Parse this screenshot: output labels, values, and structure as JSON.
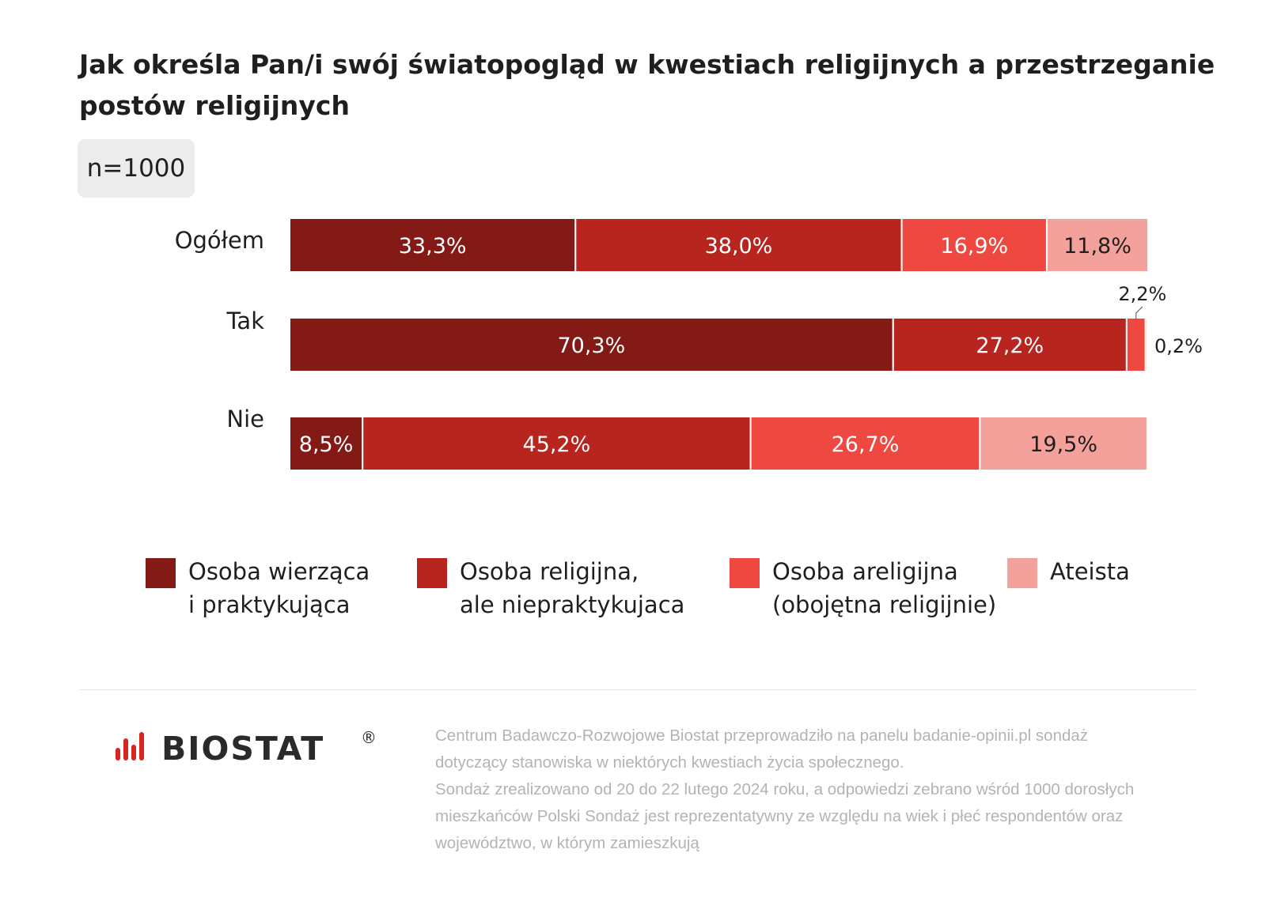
{
  "title_lines": [
    "Jak określa Pan/i swój światopogląd w kwestiach religijnych a przestrzeganie",
    "postów religijnych"
  ],
  "sample_size": "n=1000",
  "chart_data": {
    "type": "bar",
    "orientation": "horizontal",
    "stacked": true,
    "categories": [
      "Ogółem",
      "Tak",
      "Nie"
    ],
    "series": [
      {
        "name": "Osoba wierząca i praktykująca",
        "values": [
          33.3,
          70.3,
          8.5
        ],
        "labels": [
          "33,3%",
          "70,3%",
          "8,5%"
        ],
        "color": "#841a15",
        "text_color": "#ffffff"
      },
      {
        "name": "Osoba religijna, ale niepraktykujaca",
        "values": [
          38.0,
          27.2,
          45.2
        ],
        "labels": [
          "38,0%",
          "27,2%",
          "45,2%"
        ],
        "color": "#b8251f",
        "text_color": "#ffffff"
      },
      {
        "name": "Osoba areligijna (obojętna religijnie)",
        "values": [
          16.9,
          2.2,
          26.7
        ],
        "labels": [
          "16,9%",
          "2,2%",
          "26,7%"
        ],
        "color": "#ef4840",
        "text_color": "#ffffff"
      },
      {
        "name": "Ateista",
        "values": [
          11.8,
          0.2,
          19.5
        ],
        "labels": [
          "11,8%",
          "0,2%",
          "19,5%"
        ],
        "color": "#f5a19b",
        "text_color": "#1f1f1f"
      }
    ],
    "value_unit": "%",
    "xlim": [
      0,
      100
    ],
    "grid": false,
    "legend_position": "bottom"
  },
  "legend": [
    {
      "lines": [
        "Osoba wierząca",
        "i praktykująca"
      ],
      "color": "#841a15"
    },
    {
      "lines": [
        "Osoba religijna,",
        "ale niepraktykujaca"
      ],
      "color": "#b8251f"
    },
    {
      "lines": [
        "Osoba areligijna",
        "(obojętna religijnie)"
      ],
      "color": "#ef4840"
    },
    {
      "lines": [
        "Ateista"
      ],
      "color": "#f5a19b"
    }
  ],
  "logo_text": "BIOSTAT",
  "logo_mark": "®",
  "footnote_lines": [
    "Centrum Badawczo-Rozwojowe Biostat przeprowadziło na panelu badanie-opinii.pl sondaż",
    "dotyczący stanowiska w niektórych kwestiach życia społecznego.",
    "Sondaż zrealizowano od 20 do 22 lutego 2024 roku, a odpowiedzi zebrano wśród 1000 dorosłych",
    "mieszkańców Polski Sondaż jest reprezentatywny ze względu na wiek i płeć respondentów oraz",
    "województwo, w którym zamieszkują"
  ]
}
